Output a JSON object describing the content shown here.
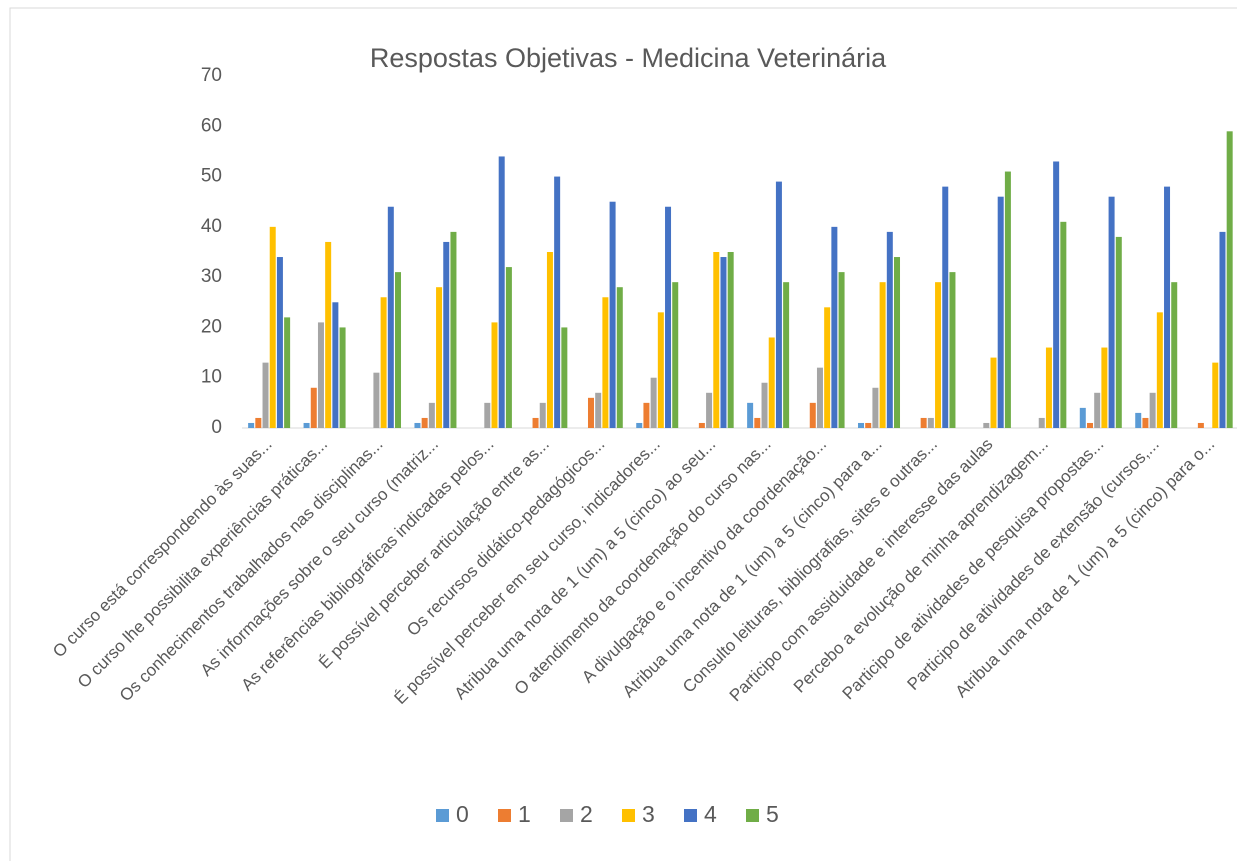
{
  "chart_data": {
    "type": "bar",
    "title": "Respostas Objetivas - Medicina Veterinária",
    "categories": [
      "O curso está correspondendo às suas...",
      "O curso lhe possibilita experiências práticas...",
      "Os conhecimentos trabalhados nas disciplinas...",
      "As informações sobre o seu curso (matriz...",
      "As referências bibliográficas indicadas pelos...",
      "É possível perceber articulação entre as...",
      "Os recursos didático-pedagógicos...",
      "É possível perceber em seu curso, indicadores...",
      "Atribua uma nota de 1 (um) a 5 (cinco) ao seu...",
      "O atendimento da coordenação do curso nas...",
      "A divulgação e o incentivo da coordenação...",
      "Atribua uma nota de 1 (um) a 5 (cinco) para a...",
      "Consulto leituras, bibliografias, sites e outras...",
      "Participo com assiduidade e interesse das aulas",
      "Percebo a evolução de minha aprendizagem...",
      "Participo de atividades de pesquisa propostas...",
      "Participo de atividades de extensão (cursos,...",
      "Atribua uma nota de 1 (um) a 5 (cinco) para o..."
    ],
    "series": [
      {
        "name": "0",
        "color": "#5b9bd5",
        "values": [
          1,
          1,
          0,
          1,
          0,
          0,
          0,
          1,
          0,
          5,
          0,
          1,
          0,
          0,
          0,
          4,
          3,
          0
        ]
      },
      {
        "name": "1",
        "color": "#ed7d31",
        "values": [
          2,
          8,
          0,
          2,
          0,
          2,
          6,
          5,
          1,
          2,
          5,
          1,
          2,
          0,
          0,
          1,
          2,
          1
        ]
      },
      {
        "name": "2",
        "color": "#a5a5a5",
        "values": [
          13,
          21,
          11,
          5,
          5,
          5,
          7,
          10,
          7,
          9,
          12,
          8,
          2,
          1,
          2,
          7,
          7,
          0
        ]
      },
      {
        "name": "3",
        "color": "#ffc000",
        "values": [
          40,
          37,
          26,
          28,
          21,
          35,
          26,
          23,
          35,
          18,
          24,
          29,
          29,
          14,
          16,
          16,
          23,
          13
        ]
      },
      {
        "name": "4",
        "color": "#4472c4",
        "values": [
          34,
          25,
          44,
          37,
          54,
          50,
          45,
          44,
          34,
          49,
          40,
          39,
          48,
          46,
          53,
          46,
          48,
          39
        ]
      },
      {
        "name": "5",
        "color": "#70ad47",
        "values": [
          22,
          20,
          31,
          39,
          32,
          20,
          28,
          29,
          35,
          29,
          31,
          34,
          31,
          51,
          41,
          38,
          29,
          59
        ]
      }
    ],
    "ylim": [
      0,
      70
    ],
    "yticks": [
      0,
      10,
      20,
      30,
      40,
      50,
      60,
      70
    ],
    "grid": false,
    "legend": "bottom"
  }
}
